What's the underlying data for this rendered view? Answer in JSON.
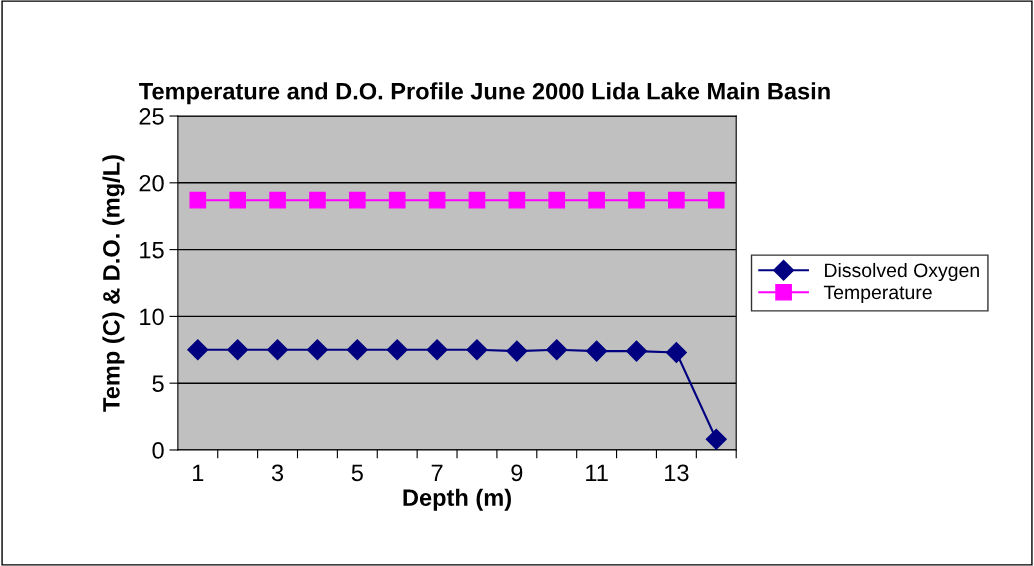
{
  "chart_data": {
    "type": "line",
    "title": "Temperature and D.O. Profile June 2000 Lida Lake Main Basin",
    "xlabel": "Depth (m)",
    "ylabel": "Temp (C) & D.O. (mg/L)",
    "categories": [
      "1",
      null,
      "3",
      null,
      "5",
      null,
      "7",
      null,
      "9",
      null,
      "11",
      null,
      "13",
      null
    ],
    "series": [
      {
        "name": "Dissolved Oxygen",
        "color": "#000080",
        "marker": "diamond",
        "values": [
          7.5,
          7.5,
          7.5,
          7.5,
          7.5,
          7.5,
          7.5,
          7.5,
          7.4,
          7.5,
          7.4,
          7.4,
          7.3,
          0.8
        ]
      },
      {
        "name": "Temperature",
        "color": "#ff00ff",
        "marker": "square",
        "values": [
          18.7,
          18.7,
          18.7,
          18.7,
          18.7,
          18.7,
          18.7,
          18.7,
          18.7,
          18.7,
          18.7,
          18.7,
          18.7,
          18.7
        ]
      }
    ],
    "ylim": [
      0,
      25
    ],
    "yticks": [
      0,
      5,
      10,
      15,
      20,
      25
    ],
    "grid": "y",
    "legend": "right",
    "line_style": "solid"
  }
}
